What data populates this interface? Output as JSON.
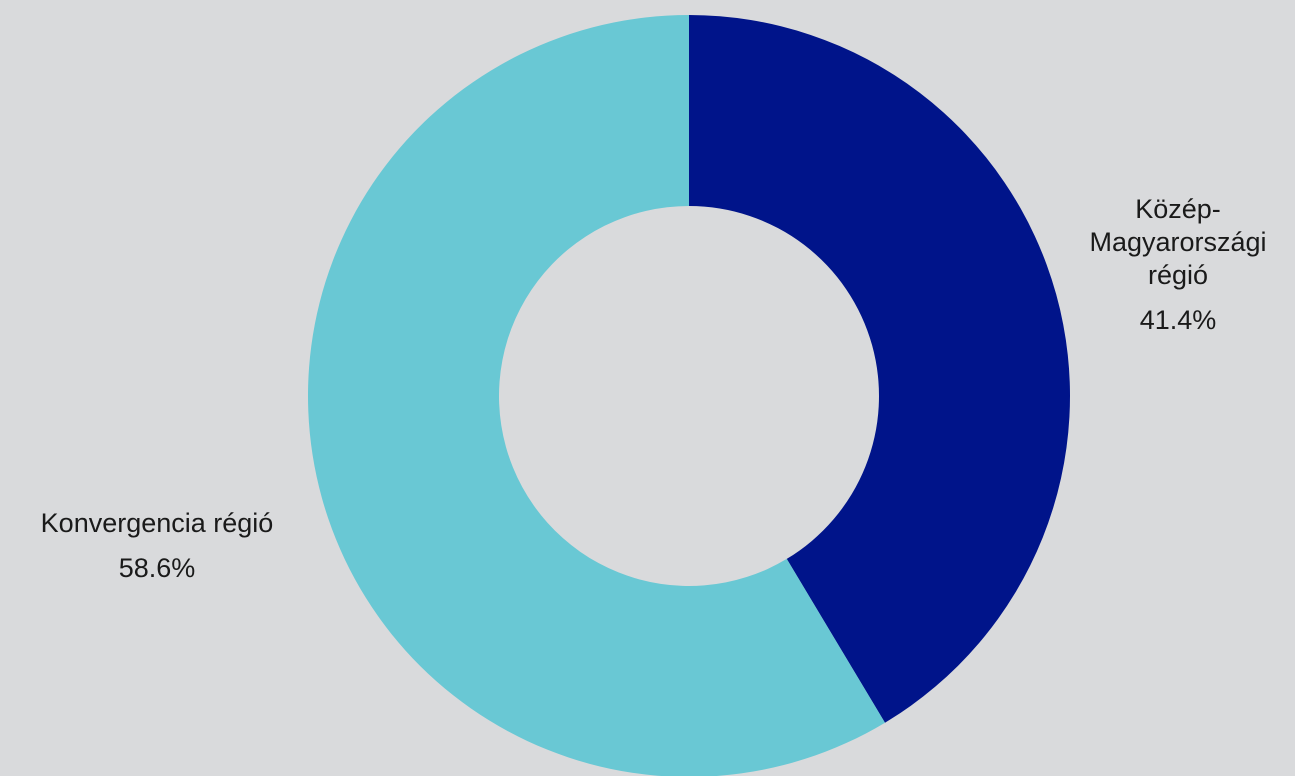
{
  "chart_data": {
    "type": "pie",
    "donut": true,
    "title": "",
    "slices": [
      {
        "name_lines": [
          "Közép-",
          "Magyarországi",
          "régió"
        ],
        "value": 41.4,
        "value_label": "41.4%",
        "color": "#00148a"
      },
      {
        "name_lines": [
          "Konvergencia régió"
        ],
        "value": 58.6,
        "value_label": "58.6%",
        "color": "#69c8d4"
      }
    ],
    "start_angle": "top",
    "direction": "clockwise",
    "legend": "none",
    "background": "#d9dadc"
  }
}
